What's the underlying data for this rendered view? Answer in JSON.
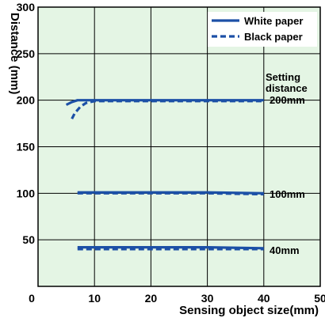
{
  "chart_data": {
    "type": "line",
    "title": "",
    "xlabel": "Sensing object size(mm)",
    "ylabel": "Distance (mm)",
    "xlim": [
      0,
      50
    ],
    "ylim": [
      0,
      300
    ],
    "xticks": [
      0,
      10,
      20,
      30,
      40,
      50
    ],
    "yticks": [
      50,
      100,
      150,
      200,
      250,
      300
    ],
    "grid": true,
    "background_color": "#e4f5e4",
    "line_color": "#1c50a6",
    "legend_position": "top-right",
    "legend": [
      {
        "label": "White paper",
        "style": "solid"
      },
      {
        "label": "Black paper",
        "style": "dashed"
      }
    ],
    "series": [
      {
        "legend": "White paper",
        "setting": "200mm",
        "x": [
          5,
          6,
          7,
          8,
          10,
          20,
          30,
          40
        ],
        "y": [
          195,
          198,
          200,
          200,
          200,
          200,
          200,
          200
        ]
      },
      {
        "legend": "Black paper",
        "setting": "200mm",
        "x": [
          6,
          6.5,
          7.5,
          8.5,
          10,
          20,
          30,
          40
        ],
        "y": [
          180,
          186,
          193,
          197,
          199,
          199,
          199,
          199
        ]
      },
      {
        "legend": "White paper",
        "setting": "100mm",
        "x": [
          7,
          10,
          20,
          30,
          40
        ],
        "y": [
          101,
          101,
          101,
          101,
          100
        ]
      },
      {
        "legend": "Black paper",
        "setting": "100mm",
        "x": [
          7,
          10,
          20,
          30,
          40
        ],
        "y": [
          100,
          100,
          100,
          100,
          99
        ]
      },
      {
        "legend": "White paper",
        "setting": "40mm",
        "x": [
          7,
          10,
          20,
          30,
          40
        ],
        "y": [
          42,
          42,
          42,
          42,
          41
        ]
      },
      {
        "legend": "Black paper",
        "setting": "40mm",
        "x": [
          7,
          10,
          20,
          30,
          40
        ],
        "y": [
          40,
          40,
          40,
          40,
          40
        ]
      }
    ],
    "annotations": {
      "setting_line1": "Setting",
      "setting_line2": "distance",
      "label_200": "200mm",
      "label_100": "100mm",
      "label_40": "40mm"
    }
  }
}
